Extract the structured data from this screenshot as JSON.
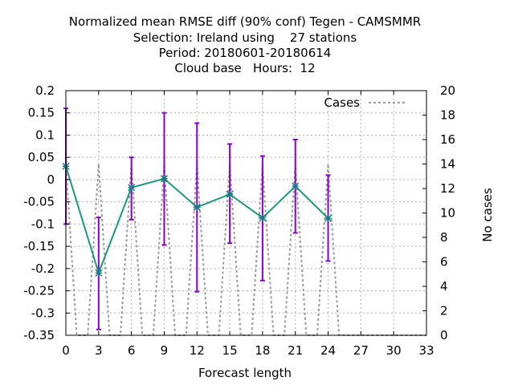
{
  "chart_data": {
    "type": "line",
    "title": [
      "Normalized mean RMSE diff (90% conf) Tegen - CAMSMMR",
      "Selection: Ireland using    27 stations",
      "Period: 20180601-20180614",
      "Cloud base   Hours:  12"
    ],
    "xlabel": "Forecast length",
    "ylabel": "",
    "y2label": "No cases",
    "xlim": [
      0,
      33
    ],
    "ylim": [
      -0.35,
      0.2
    ],
    "y2lim": [
      0,
      20
    ],
    "xticks": [
      "0",
      "3",
      "6",
      "9",
      "12",
      "15",
      "18",
      "21",
      "24",
      "27",
      "30",
      "33"
    ],
    "yticks": [
      "0.2",
      "0.15",
      "0.1",
      "0.05",
      "0",
      "-0.05",
      "-0.1",
      "-0.15",
      "-0.2",
      "-0.25",
      "-0.3",
      "-0.35"
    ],
    "y2ticks": [
      "20",
      "18",
      "16",
      "14",
      "12",
      "10",
      "8",
      "6",
      "4",
      "2",
      "0"
    ],
    "grid": true,
    "legend_position": "top-right",
    "series": [
      {
        "name": "",
        "axis": "y1",
        "x": [
          0,
          3,
          6,
          9,
          12,
          15,
          18,
          21,
          24
        ],
        "values": [
          0.03,
          -0.21,
          -0.018,
          0.002,
          -0.062,
          -0.033,
          -0.086,
          -0.015,
          -0.087
        ],
        "err_low": [
          -0.1,
          -0.337,
          -0.09,
          -0.147,
          -0.252,
          -0.143,
          -0.227,
          -0.12,
          -0.183
        ],
        "err_high": [
          0.16,
          -0.085,
          0.05,
          0.15,
          0.127,
          0.08,
          0.053,
          0.09,
          0.01
        ]
      },
      {
        "name": "Cases",
        "axis": "y2",
        "x": [
          0,
          1,
          2,
          3,
          4,
          5,
          6,
          7,
          8,
          9,
          10,
          11,
          12,
          13,
          14,
          15,
          16,
          17,
          18,
          19,
          20,
          21,
          22,
          23,
          24,
          25,
          26,
          27,
          28,
          29,
          30,
          31,
          32,
          33
        ],
        "values": [
          14,
          0,
          0,
          14,
          0,
          0,
          14,
          0,
          0,
          14,
          0,
          0,
          14,
          0,
          0,
          14,
          0,
          0,
          14,
          0,
          0,
          14,
          0,
          0,
          14,
          0,
          0,
          0,
          0,
          0,
          0,
          0,
          0,
          0
        ]
      }
    ],
    "colors": {
      "line": "#1a9a7a",
      "errorbar": "#8a00c8",
      "marker": "#1a7a8a",
      "cases": "#999999",
      "grid": "#b0b0b0"
    }
  }
}
